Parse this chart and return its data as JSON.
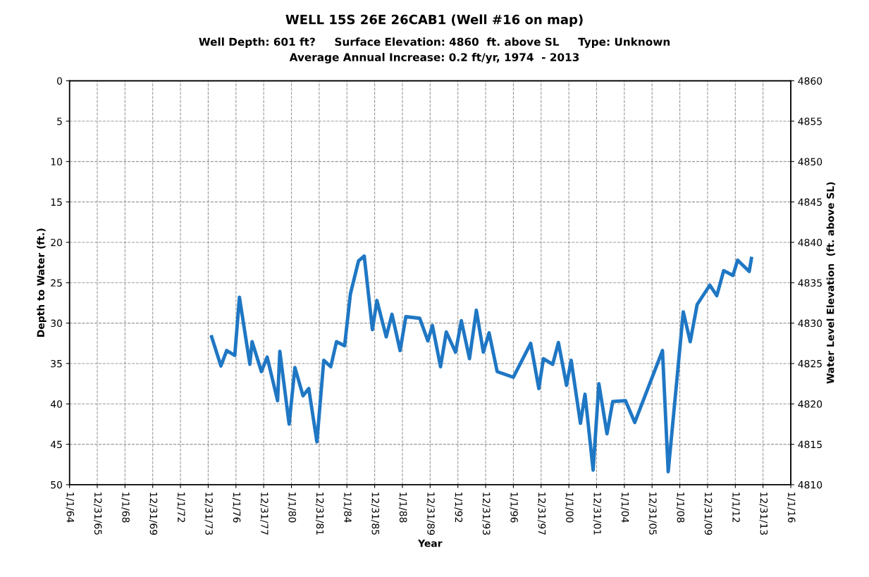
{
  "chart_data": {
    "type": "line",
    "title": "WELL 15S 26E 26CAB1 (Well #16 on map)",
    "subtitle": "Well Depth: 601 ft?     Surface Elevation: 4860  ft. above SL     Type: Unknown\nAverage Annual Increase: 0.2 ft/yr, 1974  - 2013",
    "xlabel": "Year",
    "ylabel": "Depth to Water (ft.)",
    "y2label": "Water Level Elevation  (ft. above SL)",
    "x": [
      "1974-04",
      "1974-12",
      "1975-05",
      "1975-12",
      "1976-04",
      "1977-01",
      "1977-03",
      "1977-11",
      "1978-04",
      "1979-01",
      "1979-03",
      "1979-11",
      "1980-04",
      "1980-11",
      "1981-04",
      "1981-11",
      "1982-05",
      "1982-11",
      "1983-04",
      "1983-11",
      "1984-04",
      "1984-11",
      "1985-04",
      "1985-11",
      "1986-03",
      "1986-11",
      "1987-04",
      "1987-11",
      "1988-04",
      "1989-04",
      "1989-11",
      "1990-03",
      "1990-10",
      "1991-03",
      "1991-11",
      "1992-04",
      "1992-11",
      "1993-05",
      "1993-11",
      "1994-04",
      "1994-11",
      "1996-01",
      "1997-04",
      "1997-11",
      "1998-03",
      "1998-11",
      "1999-04",
      "1999-11",
      "2000-03",
      "2000-11",
      "2001-03",
      "2001-10",
      "2002-03",
      "2002-10",
      "2003-03",
      "2004-02",
      "2004-10",
      "2006-10",
      "2007-03",
      "2008-04",
      "2008-10",
      "2009-04",
      "2010-03",
      "2010-09",
      "2011-03",
      "2011-11",
      "2012-03",
      "2013-01",
      "2013-03"
    ],
    "series": [
      {
        "color": "#1f77c4",
        "values": [
          31.7,
          35.3,
          33.4,
          34.0,
          26.8,
          35.1,
          32.3,
          36.0,
          34.2,
          39.6,
          33.5,
          42.5,
          35.5,
          39.0,
          38.1,
          44.7,
          34.6,
          35.4,
          32.3,
          32.8,
          26.4,
          22.3,
          21.7,
          30.8,
          27.2,
          31.7,
          28.9,
          33.4,
          29.2,
          29.4,
          32.2,
          30.3,
          35.4,
          31.1,
          33.6,
          29.7,
          34.4,
          28.4,
          33.6,
          31.2,
          36.0,
          36.7,
          32.5,
          38.1,
          34.4,
          35.1,
          32.4,
          37.7,
          34.6,
          42.4,
          38.8,
          48.2,
          37.5,
          43.7,
          39.7,
          39.6,
          42.3,
          33.4,
          48.4,
          28.6,
          32.3,
          27.7,
          25.3,
          26.6,
          23.5,
          24.1,
          22.2,
          23.6,
          22.0
        ]
      }
    ],
    "xlim": [
      "1964-01-01",
      "2016-01-01"
    ],
    "xticks": [
      {
        "value": "1964-01-01",
        "label": "1/1/64"
      },
      {
        "value": "1965-12-31",
        "label": "12/31/65"
      },
      {
        "value": "1968-01-01",
        "label": "1/1/68"
      },
      {
        "value": "1969-12-31",
        "label": "12/31/69"
      },
      {
        "value": "1972-01-01",
        "label": "1/1/72"
      },
      {
        "value": "1973-12-31",
        "label": "12/31/73"
      },
      {
        "value": "1976-01-01",
        "label": "1/1/76"
      },
      {
        "value": "1977-12-31",
        "label": "12/31/77"
      },
      {
        "value": "1980-01-01",
        "label": "1/1/80"
      },
      {
        "value": "1981-12-31",
        "label": "12/31/81"
      },
      {
        "value": "1984-01-01",
        "label": "1/1/84"
      },
      {
        "value": "1985-12-31",
        "label": "12/31/85"
      },
      {
        "value": "1988-01-01",
        "label": "1/1/88"
      },
      {
        "value": "1989-12-31",
        "label": "12/31/89"
      },
      {
        "value": "1992-01-01",
        "label": "1/1/92"
      },
      {
        "value": "1993-12-31",
        "label": "12/31/93"
      },
      {
        "value": "1996-01-01",
        "label": "1/1/96"
      },
      {
        "value": "1997-12-31",
        "label": "12/31/97"
      },
      {
        "value": "2000-01-01",
        "label": "1/1/00"
      },
      {
        "value": "2001-12-31",
        "label": "12/31/01"
      },
      {
        "value": "2004-01-01",
        "label": "1/1/04"
      },
      {
        "value": "2005-12-31",
        "label": "12/31/05"
      },
      {
        "value": "2008-01-01",
        "label": "1/1/08"
      },
      {
        "value": "2009-12-31",
        "label": "12/31/09"
      },
      {
        "value": "2012-01-01",
        "label": "1/1/12"
      },
      {
        "value": "2013-12-31",
        "label": "12/31/13"
      },
      {
        "value": "2016-01-01",
        "label": "1/1/16"
      }
    ],
    "ylim": [
      50,
      0
    ],
    "yticks": [
      0,
      5,
      10,
      15,
      20,
      25,
      30,
      35,
      40,
      45,
      50
    ],
    "y2lim": [
      4810,
      4860
    ],
    "y2ticks": [
      4810,
      4815,
      4820,
      4825,
      4830,
      4835,
      4840,
      4845,
      4850,
      4855,
      4860
    ],
    "grid": true,
    "marker": "none",
    "line_style": "solid"
  }
}
